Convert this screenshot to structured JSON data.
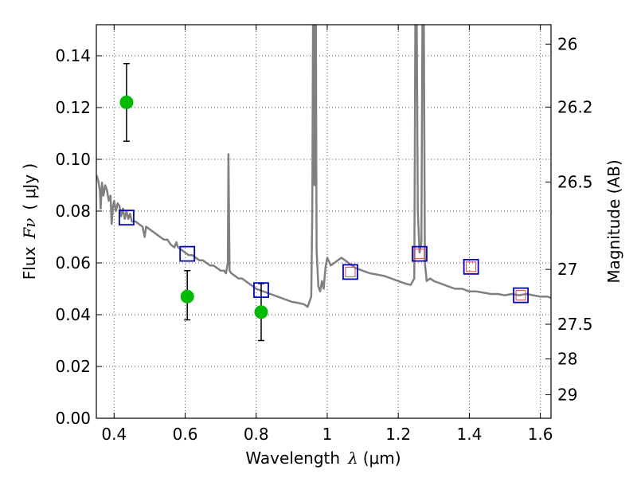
{
  "chart_data": {
    "type": "line",
    "xlabel_prefix": "Wavelength",
    "xlabel_symbol": "λ",
    "xlabel_unit": "(μm)",
    "ylabel_prefix": "Flux",
    "ylabel_symbol": "Fν",
    "ylabel_unit": "( μJy )",
    "y2label": "Magnitude (AB)",
    "xlim": [
      0.35,
      1.63
    ],
    "ylim": [
      0.0,
      0.152
    ],
    "grid": true,
    "x_ticks": [
      0.4,
      0.6,
      0.8,
      1.0,
      1.2,
      1.4,
      1.6
    ],
    "x_tick_labels": [
      "0.4",
      "0.6",
      "0.8",
      "1",
      "1.2",
      "1.4",
      "1.6"
    ],
    "y_ticks": [
      0.0,
      0.02,
      0.04,
      0.06,
      0.08,
      0.1,
      0.12,
      0.14
    ],
    "y_tick_labels": [
      "0.00",
      "0.02",
      "0.04",
      "0.06",
      "0.08",
      "0.10",
      "0.12",
      "0.14"
    ],
    "y2_ticks": [
      {
        "label": "26",
        "flux": 0.1445
      },
      {
        "label": "26.2",
        "flux": 0.1202
      },
      {
        "label": "26.5",
        "flux": 0.0912
      },
      {
        "label": "27",
        "flux": 0.0575
      },
      {
        "label": "27.5",
        "flux": 0.0363
      },
      {
        "label": "28",
        "flux": 0.0229
      },
      {
        "label": "29",
        "flux": 0.0091
      }
    ],
    "series": [
      {
        "name": "model-spectrum",
        "kind": "line",
        "color": "#808080",
        "points": [
          [
            0.35,
            0.094
          ],
          [
            0.355,
            0.092
          ],
          [
            0.36,
            0.088
          ],
          [
            0.362,
            0.081
          ],
          [
            0.366,
            0.091
          ],
          [
            0.37,
            0.086
          ],
          [
            0.375,
            0.09
          ],
          [
            0.38,
            0.088
          ],
          [
            0.385,
            0.084
          ],
          [
            0.39,
            0.086
          ],
          [
            0.393,
            0.075
          ],
          [
            0.397,
            0.082
          ],
          [
            0.4,
            0.084
          ],
          [
            0.405,
            0.08
          ],
          [
            0.41,
            0.083
          ],
          [
            0.415,
            0.082
          ],
          [
            0.42,
            0.078
          ],
          [
            0.425,
            0.081
          ],
          [
            0.43,
            0.077
          ],
          [
            0.435,
            0.08
          ],
          [
            0.44,
            0.077
          ],
          [
            0.445,
            0.079
          ],
          [
            0.45,
            0.076
          ],
          [
            0.46,
            0.076
          ],
          [
            0.47,
            0.075
          ],
          [
            0.48,
            0.074
          ],
          [
            0.486,
            0.07
          ],
          [
            0.49,
            0.074
          ],
          [
            0.5,
            0.073
          ],
          [
            0.51,
            0.072
          ],
          [
            0.52,
            0.071
          ],
          [
            0.53,
            0.07
          ],
          [
            0.54,
            0.069
          ],
          [
            0.55,
            0.069
          ],
          [
            0.56,
            0.067
          ],
          [
            0.57,
            0.066
          ],
          [
            0.575,
            0.068
          ],
          [
            0.58,
            0.066
          ],
          [
            0.59,
            0.065
          ],
          [
            0.6,
            0.064
          ],
          [
            0.61,
            0.063
          ],
          [
            0.62,
            0.063
          ],
          [
            0.63,
            0.062
          ],
          [
            0.64,
            0.061
          ],
          [
            0.65,
            0.061
          ],
          [
            0.66,
            0.06
          ],
          [
            0.67,
            0.059
          ],
          [
            0.68,
            0.059
          ],
          [
            0.69,
            0.058
          ],
          [
            0.7,
            0.057
          ],
          [
            0.71,
            0.057
          ],
          [
            0.715,
            0.056
          ],
          [
            0.72,
            0.06
          ],
          [
            0.722,
            0.102
          ],
          [
            0.725,
            0.057
          ],
          [
            0.73,
            0.056
          ],
          [
            0.74,
            0.055
          ],
          [
            0.75,
            0.054
          ],
          [
            0.76,
            0.054
          ],
          [
            0.77,
            0.053
          ],
          [
            0.78,
            0.052
          ],
          [
            0.79,
            0.051
          ],
          [
            0.8,
            0.05
          ],
          [
            0.82,
            0.049
          ],
          [
            0.84,
            0.048
          ],
          [
            0.86,
            0.047
          ],
          [
            0.88,
            0.046
          ],
          [
            0.9,
            0.045
          ],
          [
            0.92,
            0.0445
          ],
          [
            0.935,
            0.044
          ],
          [
            0.945,
            0.043
          ],
          [
            0.955,
            0.047
          ],
          [
            0.958,
            0.08
          ],
          [
            0.96,
            0.152
          ],
          [
            0.962,
            0.152
          ],
          [
            0.964,
            0.09
          ],
          [
            0.966,
            0.152
          ],
          [
            0.968,
            0.152
          ],
          [
            0.97,
            0.065
          ],
          [
            0.975,
            0.051
          ],
          [
            0.98,
            0.049
          ],
          [
            0.985,
            0.053
          ],
          [
            0.99,
            0.05
          ],
          [
            0.995,
            0.058
          ],
          [
            1.0,
            0.062
          ],
          [
            1.01,
            0.059
          ],
          [
            1.02,
            0.06
          ],
          [
            1.03,
            0.061
          ],
          [
            1.04,
            0.062
          ],
          [
            1.05,
            0.061
          ],
          [
            1.06,
            0.06
          ],
          [
            1.07,
            0.059
          ],
          [
            1.08,
            0.058
          ],
          [
            1.1,
            0.057
          ],
          [
            1.12,
            0.056
          ],
          [
            1.14,
            0.0555
          ],
          [
            1.16,
            0.055
          ],
          [
            1.18,
            0.054
          ],
          [
            1.2,
            0.053
          ],
          [
            1.22,
            0.052
          ],
          [
            1.235,
            0.0515
          ],
          [
            1.245,
            0.054
          ],
          [
            1.248,
            0.152
          ],
          [
            1.252,
            0.152
          ],
          [
            1.255,
            0.08
          ],
          [
            1.26,
            0.064
          ],
          [
            1.265,
            0.068
          ],
          [
            1.268,
            0.152
          ],
          [
            1.272,
            0.152
          ],
          [
            1.275,
            0.06
          ],
          [
            1.28,
            0.053
          ],
          [
            1.29,
            0.054
          ],
          [
            1.3,
            0.053
          ],
          [
            1.32,
            0.052
          ],
          [
            1.34,
            0.051
          ],
          [
            1.36,
            0.05
          ],
          [
            1.38,
            0.05
          ],
          [
            1.4,
            0.049
          ],
          [
            1.42,
            0.049
          ],
          [
            1.44,
            0.0485
          ],
          [
            1.46,
            0.048
          ],
          [
            1.48,
            0.048
          ],
          [
            1.5,
            0.0475
          ],
          [
            1.52,
            0.048
          ],
          [
            1.54,
            0.0475
          ],
          [
            1.56,
            0.048
          ],
          [
            1.58,
            0.0475
          ],
          [
            1.6,
            0.047
          ],
          [
            1.62,
            0.047
          ],
          [
            1.63,
            0.0465
          ]
        ]
      },
      {
        "name": "observed-photometry",
        "kind": "scatter",
        "color": "#00bb00",
        "points": [
          {
            "x": 0.435,
            "y": 0.122,
            "err_low": 0.107,
            "err_high": 0.137
          },
          {
            "x": 0.606,
            "y": 0.047,
            "err_low": 0.038,
            "err_high": 0.057
          },
          {
            "x": 0.814,
            "y": 0.041,
            "err_low": 0.03,
            "err_high": 0.052
          }
        ]
      },
      {
        "name": "model-photometry",
        "kind": "squares",
        "color": "#0000cc",
        "points": [
          [
            0.435,
            0.0775
          ],
          [
            0.606,
            0.0635
          ],
          [
            0.814,
            0.0495
          ],
          [
            1.065,
            0.0565
          ],
          [
            1.26,
            0.0635
          ],
          [
            1.405,
            0.0585
          ],
          [
            1.545,
            0.0475
          ]
        ]
      },
      {
        "name": "model-photometry-inner",
        "kind": "squares",
        "color": "#dd4444",
        "points": [
          [
            1.065,
            0.0565
          ],
          [
            1.26,
            0.0635
          ],
          [
            1.405,
            0.0585
          ],
          [
            1.545,
            0.0475
          ]
        ]
      }
    ]
  }
}
